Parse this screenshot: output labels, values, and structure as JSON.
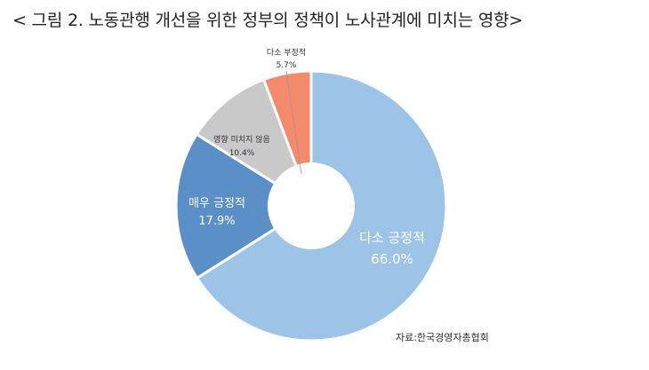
{
  "title": "< 그림 2. 노동관행 개선을 위한 정부의 정책이 노사관계에 미치는 영향>",
  "source": "자료:한국경영자총협회",
  "chart_data": {
    "type": "pie",
    "donut": true,
    "slices": [
      {
        "label": "다소 긍정적",
        "value": 66.0,
        "value_label": "66.0%",
        "color": "#9dc3e6",
        "text_color": "#ffffff"
      },
      {
        "label": "매우 긍정적",
        "value": 17.9,
        "value_label": "17.9%",
        "color": "#5b8fc7",
        "text_color": "#ffffff"
      },
      {
        "label": "영향 미치지 않음",
        "value": 10.4,
        "value_label": "10.4%",
        "color": "#c9c9c9",
        "text_color": "#333333"
      },
      {
        "label": "다소 부정적",
        "value": 5.7,
        "value_label": "5.7%",
        "color": "#f4896b",
        "text_color": "#333333"
      }
    ]
  }
}
